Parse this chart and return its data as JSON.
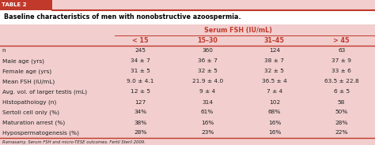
{
  "title": "Baseline characteristics of men with nonobstructive azoospermia.",
  "col_header_main": "Serum FSH (IU/mL)",
  "col_headers": [
    "< 15",
    "15–30",
    "31–45",
    "> 45"
  ],
  "row_labels": [
    "n",
    "Male age (yrs)",
    "Female age (yrs)",
    "Mean FSH (IU/mL)",
    "Avg. vol. of larger testis (mL)",
    "Histopathology (n)",
    "Sertoli cell only (%)",
    "Maturation arrest (%)",
    "Hypospermatogenesis (%)"
  ],
  "cell_data": [
    [
      "245",
      "360",
      "124",
      "63"
    ],
    [
      "34 ± 7",
      "36 ± 7",
      "38 ± 7",
      "37 ± 9"
    ],
    [
      "31 ± 5",
      "32 ± 5",
      "32 ± 5",
      "33 ± 6"
    ],
    [
      "9.0 ± 4.1",
      "21.9 ± 4.0",
      "36.5 ± 4",
      "63.5 ± 22.8"
    ],
    [
      "12 ± 5",
      "9 ± 4",
      "7 ± 4",
      "6 ± 5"
    ],
    [
      "127",
      "314",
      "102",
      "58"
    ],
    [
      "34%",
      "61%",
      "68%",
      "50%"
    ],
    [
      "38%",
      "16%",
      "16%",
      "28%"
    ],
    [
      "28%",
      "23%",
      "16%",
      "22%"
    ]
  ],
  "footer": "Ramasamy. Serum FSH and micro-TESE outcomes. Fertil Steril 2009.",
  "bg_color": "#f2cece",
  "white_bg": "#ffffff",
  "table2_bg": "#c0392b",
  "red_color": "#c0392b",
  "text_color": "#222222",
  "header_red": "#c0392b",
  "table2_label": "TABLE 2"
}
